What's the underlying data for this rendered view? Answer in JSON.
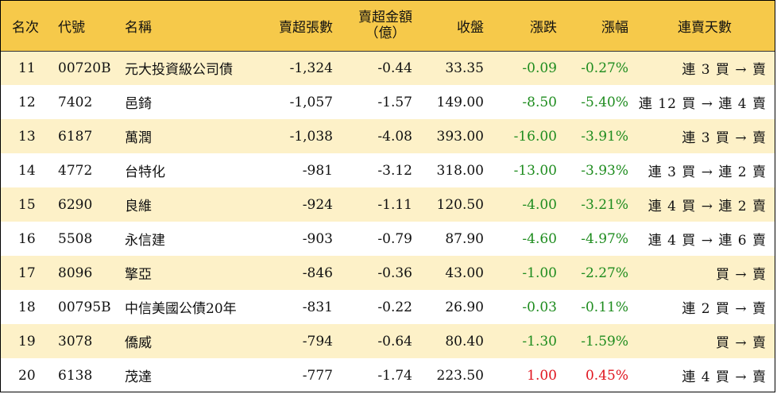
{
  "header": {
    "rank": "名次",
    "code": "代號",
    "name": "名稱",
    "net_sell_lots": "賣超張數",
    "net_sell_amount_line1": "賣超金額",
    "net_sell_amount_line2": "（億）",
    "close": "收盤",
    "change": "漲跌",
    "change_pct": "漲幅",
    "streak": "連賣天數"
  },
  "colors": {
    "header_bg": "#f6c94a",
    "stripe_bg": "#fdf1c8",
    "down": "#1e8c1e",
    "up": "#e0141e"
  },
  "rows": [
    {
      "rank": "11",
      "code": "00720B",
      "name": "元大投資級公司債",
      "lots": "-1,324",
      "amount": "-0.44",
      "close": "33.35",
      "change": "-0.09",
      "pct": "-0.27%",
      "dir": "down",
      "streak": "連 3 買 → 賣"
    },
    {
      "rank": "12",
      "code": "7402",
      "name": "邑錡",
      "lots": "-1,057",
      "amount": "-1.57",
      "close": "149.00",
      "change": "-8.50",
      "pct": "-5.40%",
      "dir": "down",
      "streak": "連 12 買 → 連 4 賣"
    },
    {
      "rank": "13",
      "code": "6187",
      "name": "萬潤",
      "lots": "-1,038",
      "amount": "-4.08",
      "close": "393.00",
      "change": "-16.00",
      "pct": "-3.91%",
      "dir": "down",
      "streak": "連 3 買 → 賣"
    },
    {
      "rank": "14",
      "code": "4772",
      "name": "台特化",
      "lots": "-981",
      "amount": "-3.12",
      "close": "318.00",
      "change": "-13.00",
      "pct": "-3.93%",
      "dir": "down",
      "streak": "連 3 買 → 連 2 賣"
    },
    {
      "rank": "15",
      "code": "6290",
      "name": "良維",
      "lots": "-924",
      "amount": "-1.11",
      "close": "120.50",
      "change": "-4.00",
      "pct": "-3.21%",
      "dir": "down",
      "streak": "連 4 買 → 連 2 賣"
    },
    {
      "rank": "16",
      "code": "5508",
      "name": "永信建",
      "lots": "-903",
      "amount": "-0.79",
      "close": "87.90",
      "change": "-4.60",
      "pct": "-4.97%",
      "dir": "down",
      "streak": "連 4 買 → 連 6 賣"
    },
    {
      "rank": "17",
      "code": "8096",
      "name": "擎亞",
      "lots": "-846",
      "amount": "-0.36",
      "close": "43.00",
      "change": "-1.00",
      "pct": "-2.27%",
      "dir": "down",
      "streak": "買 → 賣"
    },
    {
      "rank": "18",
      "code": "00795B",
      "name": "中信美國公債20年",
      "lots": "-831",
      "amount": "-0.22",
      "close": "26.90",
      "change": "-0.03",
      "pct": "-0.11%",
      "dir": "down",
      "streak": "連 2 買 → 賣"
    },
    {
      "rank": "19",
      "code": "3078",
      "name": "僑威",
      "lots": "-794",
      "amount": "-0.64",
      "close": "80.40",
      "change": "-1.30",
      "pct": "-1.59%",
      "dir": "down",
      "streak": "買 → 賣"
    },
    {
      "rank": "20",
      "code": "6138",
      "name": "茂達",
      "lots": "-777",
      "amount": "-1.74",
      "close": "223.50",
      "change": "1.00",
      "pct": "0.45%",
      "dir": "up",
      "streak": "連 4 買 → 賣"
    }
  ]
}
